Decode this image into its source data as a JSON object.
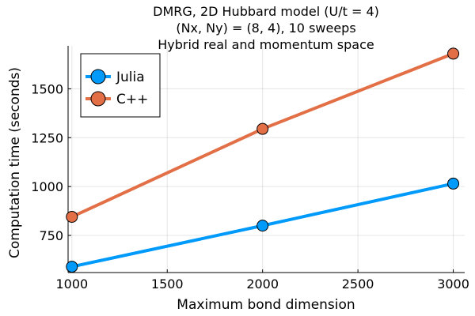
{
  "chart_data": {
    "type": "line",
    "title_lines": [
      "DMRG, 2D Hubbard model (U/t = 4)",
      "(Nx, Ny) = (8, 4), 10 sweeps",
      "Hybrid real and momentum space"
    ],
    "xlabel": "Maximum bond dimension",
    "ylabel": "Computation time (seconds)",
    "xlim": [
      980,
      3060
    ],
    "ylim": [
      560,
      1720
    ],
    "xticks": [
      1000,
      1500,
      2000,
      2500,
      3000
    ],
    "yticks": [
      750,
      1000,
      1250,
      1500
    ],
    "x": [
      1000,
      2000,
      3000
    ],
    "series": [
      {
        "name": "Julia",
        "values": [
          590,
          800,
          1015
        ],
        "color": "#009AFA"
      },
      {
        "name": "C++",
        "values": [
          845,
          1295,
          1680
        ],
        "color": "#E26F46"
      }
    ],
    "grid": true,
    "legend_position": "top-left"
  }
}
